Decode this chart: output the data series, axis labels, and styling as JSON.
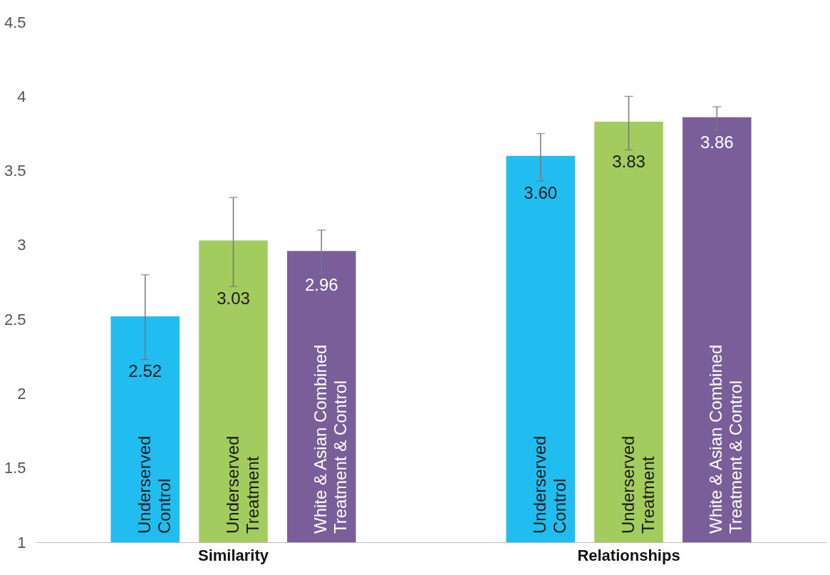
{
  "chart_data": {
    "type": "bar",
    "categories": [
      "Similarity",
      "Relationships"
    ],
    "series": [
      {
        "name": "Underserved\nControl",
        "color": "#22bdf0",
        "values": [
          2.52,
          3.6
        ],
        "value_labels": [
          "2.52",
          "3.60"
        ],
        "errors": [
          [
            2.23,
            2.8
          ],
          [
            3.43,
            3.75
          ]
        ]
      },
      {
        "name": "Underserved\nTreatment",
        "color": "#a2cc5e",
        "values": [
          3.03,
          3.83
        ],
        "value_labels": [
          "3.03",
          "3.83"
        ],
        "errors": [
          [
            2.72,
            3.32
          ],
          [
            3.64,
            4.0
          ]
        ]
      },
      {
        "name": "White & Asian Combined\nTreatment & Control",
        "color": "#7a5e99",
        "values": [
          2.96,
          3.86
        ],
        "value_labels": [
          "2.96",
          "3.86"
        ],
        "errors": [
          [
            2.81,
            3.1
          ],
          [
            3.77,
            3.93
          ]
        ]
      }
    ],
    "ylim": [
      1,
      4.5
    ],
    "yticks": [
      1,
      1.5,
      2,
      2.5,
      3,
      3.5,
      4,
      4.5
    ],
    "grid": false,
    "legend": false
  }
}
